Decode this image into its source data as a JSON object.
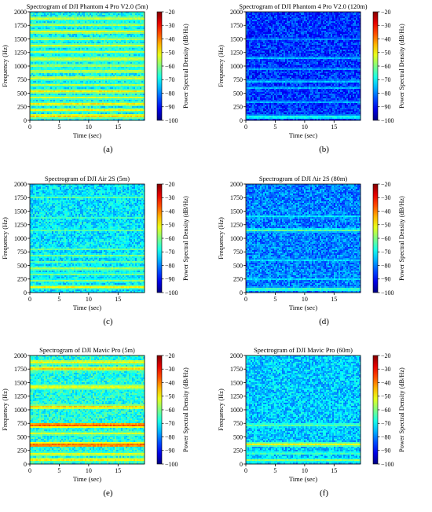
{
  "chart_data": [
    {
      "type": "heatmap",
      "panel_label": "(a)",
      "title": "Spectrogram of DJI Phantom 4 Pro V2.0 (5m)",
      "xlabel": "Time (sec)",
      "ylabel": "Frequency (Hz)",
      "colorbar_label": "Power Spectral Density (dB/Hz)",
      "xlim": [
        0,
        19.5
      ],
      "ylim": [
        0,
        2000
      ],
      "clim": [
        -100,
        -20
      ],
      "x_ticks": [
        0,
        5,
        10,
        15
      ],
      "y_ticks": [
        0,
        250,
        500,
        750,
        1000,
        1250,
        1500,
        1750,
        2000
      ],
      "colorbar_ticks": [
        -20,
        -30,
        -40,
        -50,
        -60,
        -70,
        -80,
        -90,
        -100
      ],
      "base_level_db": -70,
      "harmonic_lines": [
        {
          "frequency_hz": 80,
          "level_db": -45
        },
        {
          "frequency_hz": 190,
          "level_db": -50
        },
        {
          "frequency_hz": 300,
          "level_db": -48
        },
        {
          "frequency_hz": 420,
          "level_db": -52
        },
        {
          "frequency_hz": 530,
          "level_db": -48
        },
        {
          "frequency_hz": 650,
          "level_db": -55
        },
        {
          "frequency_hz": 780,
          "level_db": -50
        },
        {
          "frequency_hz": 900,
          "level_db": -52
        },
        {
          "frequency_hz": 1010,
          "level_db": -55
        },
        {
          "frequency_hz": 1130,
          "level_db": -50
        },
        {
          "frequency_hz": 1260,
          "level_db": -55
        },
        {
          "frequency_hz": 1380,
          "level_db": -52
        },
        {
          "frequency_hz": 1500,
          "level_db": -55
        },
        {
          "frequency_hz": 1630,
          "level_db": -50
        },
        {
          "frequency_hz": 1760,
          "level_db": -55
        },
        {
          "frequency_hz": 1880,
          "level_db": -52
        }
      ]
    },
    {
      "type": "heatmap",
      "panel_label": "(b)",
      "title": "Spectrogram of DJI Phantom 4 Pro V2.0 (120m)",
      "xlabel": "Time (sec)",
      "ylabel": "Frequency (Hz)",
      "colorbar_label": "Power Spectral Density (dB/Hz)",
      "xlim": [
        0,
        19.5
      ],
      "ylim": [
        0,
        2000
      ],
      "clim": [
        -100,
        -20
      ],
      "x_ticks": [
        0,
        5,
        10,
        15
      ],
      "y_ticks": [
        0,
        250,
        500,
        750,
        1000,
        1250,
        1500,
        1750,
        2000
      ],
      "colorbar_ticks": [
        -20,
        -30,
        -40,
        -50,
        -60,
        -70,
        -80,
        -90,
        -100
      ],
      "base_level_db": -86,
      "harmonic_lines": [
        {
          "frequency_hz": 60,
          "level_db": -65
        },
        {
          "frequency_hz": 340,
          "level_db": -75
        },
        {
          "frequency_hz": 600,
          "level_db": -75
        },
        {
          "frequency_hz": 720,
          "level_db": -72
        },
        {
          "frequency_hz": 950,
          "level_db": -76
        },
        {
          "frequency_hz": 1150,
          "level_db": -74
        },
        {
          "frequency_hz": 1500,
          "level_db": -78
        }
      ]
    },
    {
      "type": "heatmap",
      "panel_label": "(c)",
      "title": "Spectrogram of  DJI Air 2S (5m)",
      "xlabel": "Time (sec)",
      "ylabel": "Frequency (Hz)",
      "colorbar_label": "Power Spectral Density (dB/Hz)",
      "xlim": [
        0,
        19.5
      ],
      "ylim": [
        0,
        2000
      ],
      "clim": [
        -100,
        -20
      ],
      "x_ticks": [
        0,
        5,
        10,
        15
      ],
      "y_ticks": [
        0,
        250,
        500,
        750,
        1000,
        1250,
        1500,
        1750,
        2000
      ],
      "colorbar_ticks": [
        -20,
        -30,
        -40,
        -50,
        -60,
        -70,
        -80,
        -90,
        -100
      ],
      "base_level_db": -72,
      "harmonic_lines": [
        {
          "frequency_hz": 100,
          "level_db": -50
        },
        {
          "frequency_hz": 220,
          "level_db": -58
        },
        {
          "frequency_hz": 340,
          "level_db": -60
        },
        {
          "frequency_hz": 440,
          "level_db": -55
        },
        {
          "frequency_hz": 560,
          "level_db": -62
        },
        {
          "frequency_hz": 680,
          "level_db": -60
        },
        {
          "frequency_hz": 800,
          "level_db": -62
        },
        {
          "frequency_hz": 1150,
          "level_db": -62
        },
        {
          "frequency_hz": 1380,
          "level_db": -65
        },
        {
          "frequency_hz": 1760,
          "level_db": -62
        }
      ]
    },
    {
      "type": "heatmap",
      "panel_label": "(d)",
      "title": "Spectrogram of DJI Air 2S (80m)",
      "xlabel": "Time (sec)",
      "ylabel": "Frequency (Hz)",
      "colorbar_label": "Power Spectral Density (dB/Hz)",
      "xlim": [
        0,
        19.5
      ],
      "ylim": [
        0,
        2000
      ],
      "clim": [
        -100,
        -20
      ],
      "x_ticks": [
        0,
        5,
        10,
        15
      ],
      "y_ticks": [
        0,
        250,
        500,
        750,
        1000,
        1250,
        1500,
        1750,
        2000
      ],
      "colorbar_ticks": [
        -20,
        -30,
        -40,
        -50,
        -60,
        -70,
        -80,
        -90,
        -100
      ],
      "base_level_db": -80,
      "harmonic_lines": [
        {
          "frequency_hz": 60,
          "level_db": -62
        },
        {
          "frequency_hz": 250,
          "level_db": -72
        },
        {
          "frequency_hz": 600,
          "level_db": -72
        },
        {
          "frequency_hz": 1150,
          "level_db": -62
        },
        {
          "frequency_hz": 1400,
          "level_db": -70
        }
      ]
    },
    {
      "type": "heatmap",
      "panel_label": "(e)",
      "title": "Spectrogram of DJI Mavic Pro (5m)",
      "xlabel": "Time (sec)",
      "ylabel": "Frequency (Hz)",
      "colorbar_label": "Power Spectral Density (dB/Hz)",
      "xlim": [
        0,
        19.5
      ],
      "ylim": [
        0,
        2000
      ],
      "clim": [
        -100,
        -20
      ],
      "x_ticks": [
        0,
        5,
        10,
        15
      ],
      "y_ticks": [
        0,
        250,
        500,
        750,
        1000,
        1250,
        1500,
        1750,
        2000
      ],
      "colorbar_ticks": [
        -20,
        -30,
        -40,
        -50,
        -60,
        -70,
        -80,
        -90,
        -100
      ],
      "base_level_db": -68,
      "harmonic_lines": [
        {
          "frequency_hz": 80,
          "level_db": -48
        },
        {
          "frequency_hz": 180,
          "level_db": -50
        },
        {
          "frequency_hz": 350,
          "level_db": -35
        },
        {
          "frequency_hz": 560,
          "level_db": -52
        },
        {
          "frequency_hz": 720,
          "level_db": -35
        },
        {
          "frequency_hz": 1050,
          "level_db": -45
        },
        {
          "frequency_hz": 1420,
          "level_db": -48
        },
        {
          "frequency_hz": 1760,
          "level_db": -45
        },
        {
          "frequency_hz": 1880,
          "level_db": -48
        }
      ]
    },
    {
      "type": "heatmap",
      "panel_label": "(f)",
      "title": "Spectrogram of DJI Mavic Pro (60m)",
      "xlabel": "Time (sec)",
      "ylabel": "Frequency (Hz)",
      "colorbar_label": "Power Spectral Density (dB/Hz)",
      "xlim": [
        0,
        19.5
      ],
      "ylim": [
        0,
        2000
      ],
      "clim": [
        -100,
        -20
      ],
      "x_ticks": [
        0,
        5,
        10,
        15
      ],
      "y_ticks": [
        0,
        250,
        500,
        750,
        1000,
        1250,
        1500,
        1750,
        2000
      ],
      "colorbar_ticks": [
        -20,
        -30,
        -40,
        -50,
        -60,
        -70,
        -80,
        -90,
        -100
      ],
      "base_level_db": -74,
      "harmonic_lines": [
        {
          "frequency_hz": 70,
          "level_db": -58
        },
        {
          "frequency_hz": 200,
          "level_db": -62
        },
        {
          "frequency_hz": 360,
          "level_db": -50
        },
        {
          "frequency_hz": 720,
          "level_db": -60
        }
      ]
    }
  ]
}
